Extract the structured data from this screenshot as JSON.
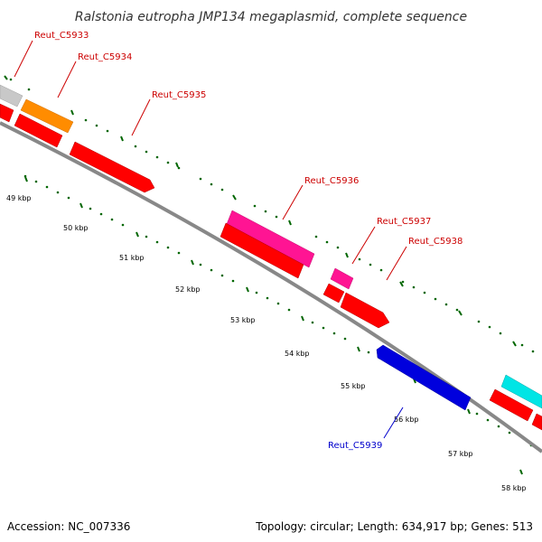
{
  "title": "Ralstonia eutropha JMP134 megaplasmid, complete sequence",
  "footer": {
    "accession": "Accession: NC_007336",
    "summary": "Topology: circular; Length: 634,917 bp; Genes: 513"
  },
  "colors": {
    "backbone": "#888888",
    "tick": "#006600",
    "forward_label": "#cc0000",
    "reverse_label": "#0000cc",
    "cds_red": "#ff0000",
    "gray_gene": "#c8c8c8",
    "orange_gene": "#ff8c00",
    "magenta_gene": "#ff1493",
    "blue_gene": "#0000dd",
    "cyan_gene": "#00e5e5"
  },
  "gene_labels": [
    {
      "id": "c5933",
      "text": "Reut_C5933",
      "strand": "forward"
    },
    {
      "id": "c5934",
      "text": "Reut_C5934",
      "strand": "forward"
    },
    {
      "id": "c5935",
      "text": "Reut_C5935",
      "strand": "forward"
    },
    {
      "id": "c5936",
      "text": "Reut_C5936",
      "strand": "forward"
    },
    {
      "id": "c5937",
      "text": "Reut_C5937",
      "strand": "forward"
    },
    {
      "id": "c5938",
      "text": "Reut_C5938",
      "strand": "forward"
    },
    {
      "id": "c5939",
      "text": "Reut_C5939",
      "strand": "reverse"
    }
  ],
  "kbp_labels": [
    "49 kbp",
    "50 kbp",
    "51 kbp",
    "52 kbp",
    "53 kbp",
    "54 kbp",
    "55 kbp",
    "56 kbp",
    "57 kbp",
    "58 kbp"
  ]
}
